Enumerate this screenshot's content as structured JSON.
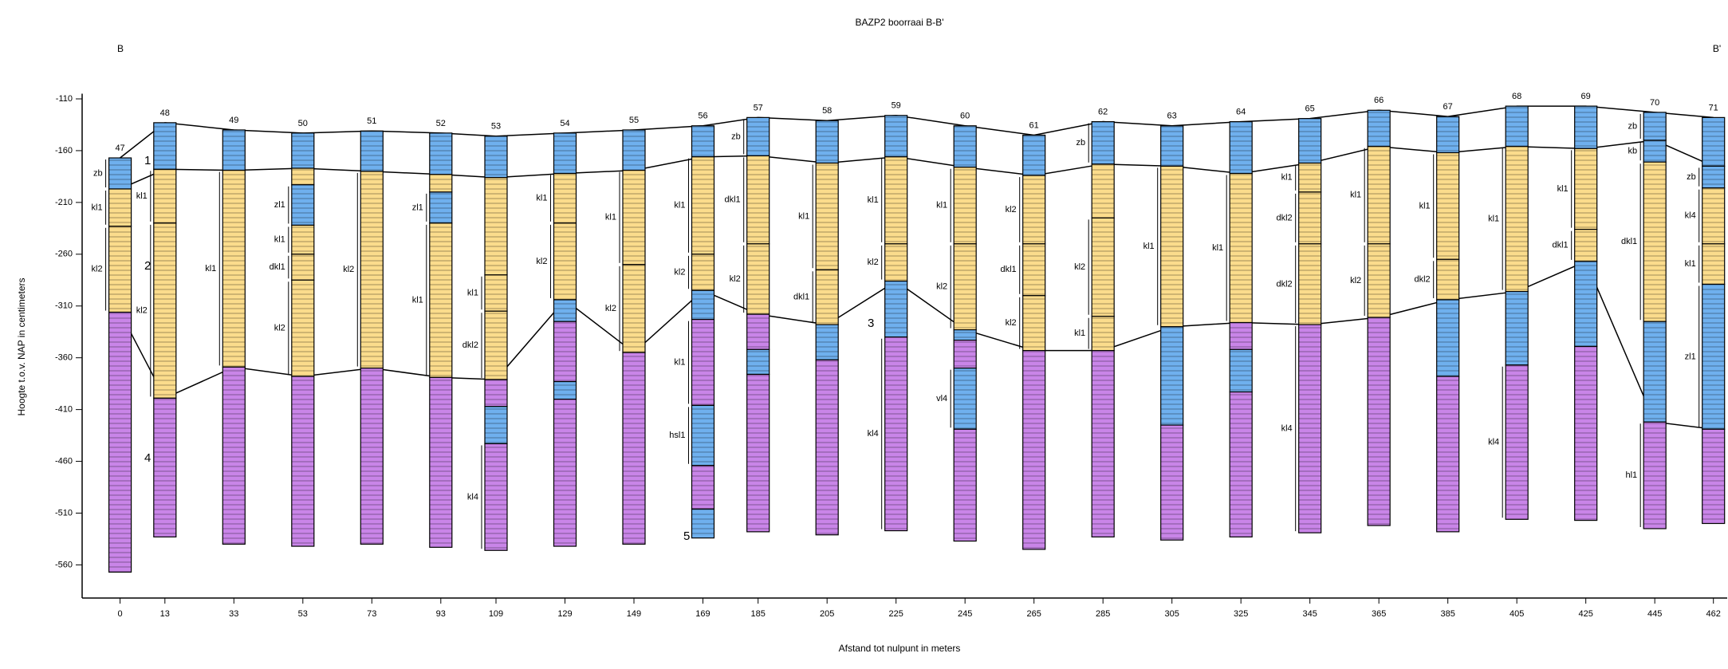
{
  "title": "BAZP2 boorraai B-B'",
  "left_label": "B",
  "right_label": "B'",
  "y_axis": {
    "label": "Hoogte t.o.v. NAP in centimeters",
    "lim": [
      -105,
      -592
    ],
    "ticks": [
      -110,
      -160,
      -210,
      -260,
      -310,
      -360,
      -410,
      -460,
      -510,
      -560
    ]
  },
  "x_axis": {
    "label": "Afstand tot nulpunt in meters",
    "lim": [
      -11,
      466
    ]
  },
  "zones": [
    "1",
    "2",
    "3",
    "4",
    "5"
  ],
  "boreholes": [
    {
      "name": "47",
      "x": 0,
      "layers": [
        {
          "from": -167,
          "to": -197,
          "color": "#6fb0ee",
          "label": "zb"
        },
        {
          "from": -197,
          "to": -233,
          "color": "#fbdc8c",
          "label": "kl1"
        },
        {
          "from": -233,
          "to": -316,
          "color": "#fbdc8c",
          "label": "kl2"
        },
        {
          "from": -316,
          "to": -567,
          "color": "#c985e8"
        }
      ]
    },
    {
      "name": "48",
      "x": 13,
      "layers": [
        {
          "from": -133,
          "to": -178,
          "color": "#6fb0ee"
        },
        {
          "from": -178,
          "to": -230,
          "color": "#fbdc8c",
          "label": "kl1"
        },
        {
          "from": -230,
          "to": -399,
          "color": "#fbdc8c",
          "label": "kl2"
        },
        {
          "from": -399,
          "to": -533,
          "color": "#c985e8"
        }
      ]
    },
    {
      "name": "49",
      "x": 33,
      "layers": [
        {
          "from": -140,
          "to": -179,
          "color": "#6fb0ee"
        },
        {
          "from": -179,
          "to": -369,
          "color": "#fbdc8c",
          "label": "kl1"
        },
        {
          "from": -369,
          "to": -540,
          "color": "#c985e8"
        }
      ]
    },
    {
      "name": "50",
      "x": 53,
      "layers": [
        {
          "from": -143,
          "to": -177,
          "color": "#6fb0ee"
        },
        {
          "from": -177,
          "to": -193,
          "color": "#fbdc8c"
        },
        {
          "from": -193,
          "to": -232,
          "color": "#6fb0ee",
          "label": "zl1"
        },
        {
          "from": -232,
          "to": -260,
          "color": "#fbdc8c",
          "label": "kl1"
        },
        {
          "from": -260,
          "to": -285,
          "color": "#fbdc8c",
          "label": "dkl1"
        },
        {
          "from": -285,
          "to": -378,
          "color": "#fbdc8c",
          "label": "kl2"
        },
        {
          "from": -378,
          "to": -542,
          "color": "#c985e8"
        }
      ]
    },
    {
      "name": "51",
      "x": 73,
      "layers": [
        {
          "from": -141,
          "to": -180,
          "color": "#6fb0ee"
        },
        {
          "from": -180,
          "to": -370,
          "color": "#fbdc8c",
          "label": "kl2"
        },
        {
          "from": -370,
          "to": -540,
          "color": "#c985e8"
        }
      ]
    },
    {
      "name": "52",
      "x": 93,
      "layers": [
        {
          "from": -143,
          "to": -183,
          "color": "#6fb0ee"
        },
        {
          "from": -183,
          "to": -200,
          "color": "#fbdc8c"
        },
        {
          "from": -200,
          "to": -230,
          "color": "#6fb0ee",
          "label": "zl1"
        },
        {
          "from": -230,
          "to": -379,
          "color": "#fbdc8c",
          "label": "kl1"
        },
        {
          "from": -379,
          "to": -543,
          "color": "#c985e8"
        }
      ]
    },
    {
      "name": "53",
      "x": 109,
      "layers": [
        {
          "from": -146,
          "to": -186,
          "color": "#6fb0ee"
        },
        {
          "from": -186,
          "to": -280,
          "color": "#fbdc8c"
        },
        {
          "from": -280,
          "to": -315,
          "color": "#fbdc8c",
          "label": "kl1"
        },
        {
          "from": -315,
          "to": -381,
          "color": "#fbdc8c",
          "label": "dkl2"
        },
        {
          "from": -381,
          "to": -407,
          "color": "#c985e8"
        },
        {
          "from": -407,
          "to": -443,
          "color": "#6fb0ee"
        },
        {
          "from": -443,
          "to": -546,
          "color": "#c985e8",
          "label": "kl4"
        }
      ]
    },
    {
      "name": "54",
      "x": 129,
      "layers": [
        {
          "from": -143,
          "to": -182,
          "color": "#6fb0ee"
        },
        {
          "from": -182,
          "to": -230,
          "color": "#fbdc8c",
          "label": "kl1"
        },
        {
          "from": -230,
          "to": -304,
          "color": "#fbdc8c",
          "label": "kl2"
        },
        {
          "from": -304,
          "to": -325,
          "color": "#6fb0ee"
        },
        {
          "from": -325,
          "to": -383,
          "color": "#c985e8"
        },
        {
          "from": -383,
          "to": -400,
          "color": "#6fb0ee"
        },
        {
          "from": -400,
          "to": -542,
          "color": "#c985e8"
        }
      ]
    },
    {
      "name": "55",
      "x": 149,
      "layers": [
        {
          "from": -140,
          "to": -179,
          "color": "#6fb0ee"
        },
        {
          "from": -179,
          "to": -270,
          "color": "#fbdc8c",
          "label": "kl1"
        },
        {
          "from": -270,
          "to": -355,
          "color": "#fbdc8c",
          "label": "kl2"
        },
        {
          "from": -355,
          "to": -540,
          "color": "#c985e8"
        }
      ]
    },
    {
      "name": "56",
      "x": 169,
      "layers": [
        {
          "from": -136,
          "to": -166,
          "color": "#6fb0ee"
        },
        {
          "from": -166,
          "to": -260,
          "color": "#fbdc8c",
          "label": "kl1"
        },
        {
          "from": -260,
          "to": -295,
          "color": "#fbdc8c",
          "label": "kl2"
        },
        {
          "from": -295,
          "to": -323,
          "color": "#6fb0ee"
        },
        {
          "from": -323,
          "to": -406,
          "color": "#c985e8",
          "label": "kl1"
        },
        {
          "from": -406,
          "to": -464,
          "color": "#6fb0ee",
          "label": "hsl1"
        },
        {
          "from": -464,
          "to": -506,
          "color": "#c985e8"
        },
        {
          "from": -506,
          "to": -534,
          "color": "#6fb0ee"
        }
      ]
    },
    {
      "name": "57",
      "x": 185,
      "layers": [
        {
          "from": -128,
          "to": -165,
          "color": "#6fb0ee",
          "label": "zb"
        },
        {
          "from": -165,
          "to": -250,
          "color": "#fbdc8c",
          "label": "dkl1"
        },
        {
          "from": -250,
          "to": -318,
          "color": "#fbdc8c",
          "label": "kl2"
        },
        {
          "from": -318,
          "to": -352,
          "color": "#c985e8"
        },
        {
          "from": -352,
          "to": -376,
          "color": "#6fb0ee"
        },
        {
          "from": -376,
          "to": -528,
          "color": "#c985e8"
        }
      ]
    },
    {
      "name": "58",
      "x": 205,
      "layers": [
        {
          "from": -131,
          "to": -172,
          "color": "#6fb0ee"
        },
        {
          "from": -172,
          "to": -275,
          "color": "#fbdc8c",
          "label": "kl1"
        },
        {
          "from": -275,
          "to": -328,
          "color": "#fbdc8c",
          "label": "dkl1"
        },
        {
          "from": -328,
          "to": -362,
          "color": "#6fb0ee"
        },
        {
          "from": -362,
          "to": -531,
          "color": "#c985e8"
        }
      ]
    },
    {
      "name": "59",
      "x": 225,
      "layers": [
        {
          "from": -126,
          "to": -166,
          "color": "#6fb0ee"
        },
        {
          "from": -166,
          "to": -250,
          "color": "#fbdc8c",
          "label": "kl1"
        },
        {
          "from": -250,
          "to": -286,
          "color": "#fbdc8c",
          "label": "kl2"
        },
        {
          "from": -286,
          "to": -340,
          "color": "#6fb0ee"
        },
        {
          "from": -340,
          "to": -527,
          "color": "#c985e8",
          "label": "kl4"
        }
      ]
    },
    {
      "name": "60",
      "x": 245,
      "layers": [
        {
          "from": -136,
          "to": -176,
          "color": "#6fb0ee"
        },
        {
          "from": -176,
          "to": -250,
          "color": "#fbdc8c",
          "label": "kl1"
        },
        {
          "from": -250,
          "to": -333,
          "color": "#fbdc8c",
          "label": "kl2"
        },
        {
          "from": -333,
          "to": -343,
          "color": "#6fb0ee"
        },
        {
          "from": -343,
          "to": -370,
          "color": "#c985e8"
        },
        {
          "from": -370,
          "to": -429,
          "color": "#6fb0ee",
          "label": "vl4"
        },
        {
          "from": -429,
          "to": -537,
          "color": "#c985e8"
        }
      ]
    },
    {
      "name": "61",
      "x": 265,
      "layers": [
        {
          "from": -145,
          "to": -184,
          "color": "#6fb0ee"
        },
        {
          "from": -184,
          "to": -250,
          "color": "#fbdc8c",
          "label": "kl2"
        },
        {
          "from": -250,
          "to": -300,
          "color": "#fbdc8c",
          "label": "dkl1"
        },
        {
          "from": -300,
          "to": -353,
          "color": "#fbdc8c",
          "label": "kl2"
        },
        {
          "from": -353,
          "to": -545,
          "color": "#c985e8"
        }
      ]
    },
    {
      "name": "62",
      "x": 285,
      "layers": [
        {
          "from": -132,
          "to": -173,
          "color": "#6fb0ee",
          "label": "zb"
        },
        {
          "from": -173,
          "to": -225,
          "color": "#fbdc8c"
        },
        {
          "from": -225,
          "to": -320,
          "color": "#fbdc8c",
          "label": "kl2"
        },
        {
          "from": -320,
          "to": -353,
          "color": "#fbdc8c",
          "label": "kl1"
        },
        {
          "from": -353,
          "to": -533,
          "color": "#c985e8"
        }
      ]
    },
    {
      "name": "63",
      "x": 305,
      "layers": [
        {
          "from": -136,
          "to": -175,
          "color": "#6fb0ee"
        },
        {
          "from": -175,
          "to": -330,
          "color": "#fbdc8c",
          "label": "kl1"
        },
        {
          "from": -330,
          "to": -425,
          "color": "#6fb0ee"
        },
        {
          "from": -425,
          "to": -536,
          "color": "#c985e8"
        }
      ]
    },
    {
      "name": "64",
      "x": 325,
      "layers": [
        {
          "from": -132,
          "to": -182,
          "color": "#6fb0ee"
        },
        {
          "from": -182,
          "to": -326,
          "color": "#fbdc8c",
          "label": "kl1"
        },
        {
          "from": -326,
          "to": -352,
          "color": "#c985e8"
        },
        {
          "from": -352,
          "to": -393,
          "color": "#6fb0ee"
        },
        {
          "from": -393,
          "to": -533,
          "color": "#c985e8"
        }
      ]
    },
    {
      "name": "65",
      "x": 345,
      "layers": [
        {
          "from": -129,
          "to": -172,
          "color": "#6fb0ee"
        },
        {
          "from": -172,
          "to": -200,
          "color": "#fbdc8c",
          "label": "kl1"
        },
        {
          "from": -200,
          "to": -250,
          "color": "#fbdc8c",
          "label": "dkl2"
        },
        {
          "from": -250,
          "to": -328,
          "color": "#fbdc8c",
          "label": "dkl2"
        },
        {
          "from": -328,
          "to": -529,
          "color": "#c985e8",
          "label": "kl4"
        }
      ]
    },
    {
      "name": "66",
      "x": 365,
      "layers": [
        {
          "from": -121,
          "to": -156,
          "color": "#6fb0ee"
        },
        {
          "from": -156,
          "to": -250,
          "color": "#fbdc8c",
          "label": "kl1"
        },
        {
          "from": -250,
          "to": -321,
          "color": "#fbdc8c",
          "label": "kl2"
        },
        {
          "from": -321,
          "to": -522,
          "color": "#c985e8"
        }
      ]
    },
    {
      "name": "67",
      "x": 385,
      "layers": [
        {
          "from": -127,
          "to": -162,
          "color": "#6fb0ee"
        },
        {
          "from": -162,
          "to": -265,
          "color": "#fbdc8c",
          "label": "kl1"
        },
        {
          "from": -265,
          "to": -304,
          "color": "#fbdc8c",
          "label": "dkl2"
        },
        {
          "from": -304,
          "to": -378,
          "color": "#6fb0ee"
        },
        {
          "from": -378,
          "to": -528,
          "color": "#c985e8"
        }
      ]
    },
    {
      "name": "68",
      "x": 405,
      "layers": [
        {
          "from": -117,
          "to": -156,
          "color": "#6fb0ee"
        },
        {
          "from": -156,
          "to": -296,
          "color": "#fbdc8c",
          "label": "kl1"
        },
        {
          "from": -296,
          "to": -367,
          "color": "#6fb0ee"
        },
        {
          "from": -367,
          "to": -516,
          "color": "#c985e8",
          "label": "kl4"
        }
      ]
    },
    {
      "name": "69",
      "x": 425,
      "layers": [
        {
          "from": -117,
          "to": -158,
          "color": "#6fb0ee"
        },
        {
          "from": -158,
          "to": -236,
          "color": "#fbdc8c",
          "label": "kl1"
        },
        {
          "from": -236,
          "to": -267,
          "color": "#fbdc8c",
          "label": "dkl1"
        },
        {
          "from": -267,
          "to": -349,
          "color": "#6fb0ee"
        },
        {
          "from": -349,
          "to": -517,
          "color": "#c985e8"
        }
      ]
    },
    {
      "name": "70",
      "x": 445,
      "layers": [
        {
          "from": -123,
          "to": -150,
          "color": "#6fb0ee",
          "label": "zb"
        },
        {
          "from": -150,
          "to": -171,
          "color": "#6fb0ee",
          "label": "kb"
        },
        {
          "from": -171,
          "to": -325,
          "color": "#fbdc8c",
          "label": "dkl1"
        },
        {
          "from": -325,
          "to": -422,
          "color": "#6fb0ee"
        },
        {
          "from": -422,
          "to": -525,
          "color": "#c985e8",
          "label": "hl1"
        }
      ]
    },
    {
      "name": "71",
      "x": 462,
      "layers": [
        {
          "from": -128,
          "to": -175,
          "color": "#6fb0ee"
        },
        {
          "from": -175,
          "to": -196,
          "color": "#6fb0ee",
          "label": "zb"
        },
        {
          "from": -196,
          "to": -250,
          "color": "#fbdc8c",
          "label": "kl4"
        },
        {
          "from": -250,
          "to": -289,
          "color": "#fbdc8c",
          "label": "kl1"
        },
        {
          "from": -289,
          "to": -429,
          "color": "#6fb0ee",
          "label": "zl1"
        },
        {
          "from": -429,
          "to": -520,
          "color": "#c985e8"
        }
      ]
    }
  ]
}
